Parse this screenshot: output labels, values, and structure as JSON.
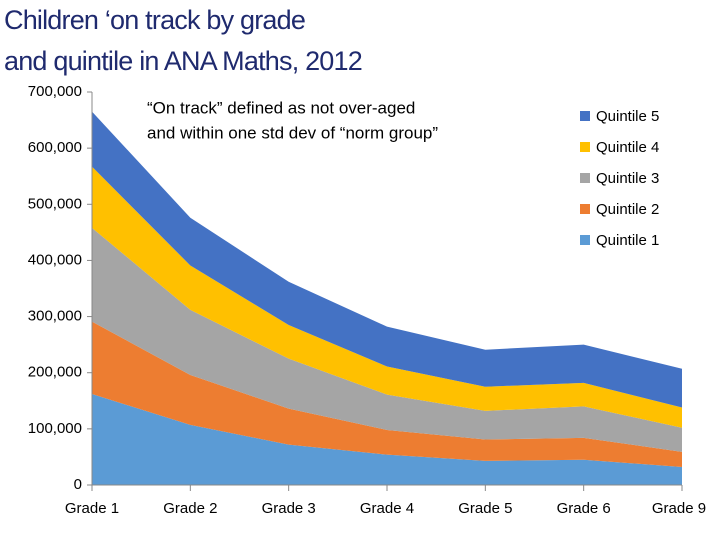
{
  "chart_data": {
    "type": "stacked_area",
    "title": [
      "Children ‘on track by grade",
      "and quintile in ANA Maths, 2012"
    ],
    "annotation": [
      "“On track” defined as not over-aged",
      "and within one std dev of “norm group”"
    ],
    "categories": [
      "Grade 1",
      "Grade 2",
      "Grade 3",
      "Grade 4",
      "Grade 5",
      "Grade 6",
      "Grade 9"
    ],
    "series": [
      {
        "name": "Quintile 1",
        "color": "#5b9bd5",
        "values": [
          162000,
          107000,
          72000,
          54000,
          43000,
          45000,
          32000
        ]
      },
      {
        "name": "Quintile 2",
        "color": "#ed7d31",
        "values": [
          129000,
          89000,
          64000,
          44000,
          38000,
          39000,
          27000
        ]
      },
      {
        "name": "Quintile 3",
        "color": "#a5a5a5",
        "values": [
          167000,
          116000,
          89000,
          63000,
          51000,
          56000,
          43000
        ]
      },
      {
        "name": "Quintile 4",
        "color": "#ffc000",
        "values": [
          109000,
          79000,
          60000,
          50000,
          43000,
          42000,
          36000
        ]
      },
      {
        "name": "Quintile 5",
        "color": "#4472c4",
        "values": [
          98000,
          85000,
          77000,
          71000,
          66000,
          68000,
          69000
        ]
      }
    ],
    "ylim": [
      0,
      700000
    ],
    "yticks": [
      0,
      {
        "value": 100000,
        "label": "100,000"
      },
      {
        "value": 200000,
        "label": "200,000"
      },
      {
        "value": 300000,
        "label": "300,000"
      },
      {
        "value": 400000,
        "label": "400,000"
      },
      {
        "value": 500000,
        "label": "500,000"
      },
      {
        "value": 600000,
        "label": "600,000"
      },
      {
        "value": 700000,
        "label": "700,000"
      }
    ],
    "grid": false
  }
}
